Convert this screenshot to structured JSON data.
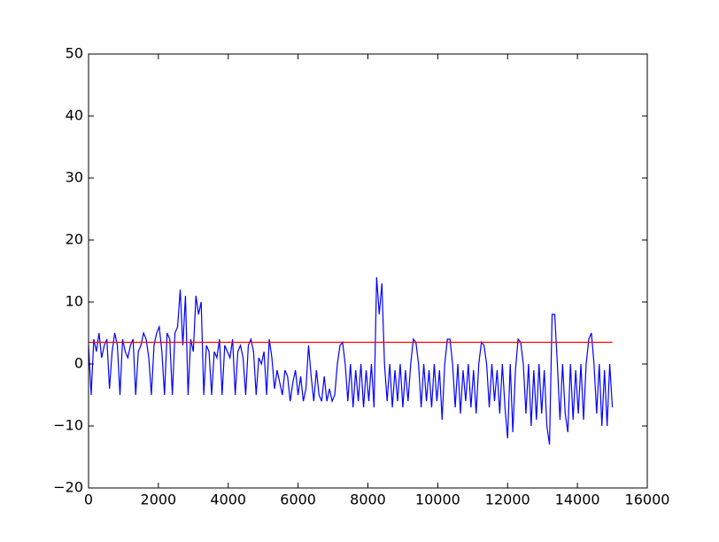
{
  "chart_data": {
    "type": "line",
    "xlim": [
      0,
      16000
    ],
    "xticks": [
      0,
      2000,
      4000,
      6000,
      8000,
      10000,
      12000,
      14000,
      16000
    ],
    "ylim": [
      -20,
      50
    ],
    "yticks": [
      {
        "value": -20,
        "label": "−20"
      },
      {
        "value": -10,
        "label": "−10"
      },
      0,
      10,
      20,
      30,
      40,
      50
    ],
    "series": [
      {
        "color": "#0000ff",
        "x": [
          0,
          75,
          150,
          225,
          300,
          375,
          450,
          525,
          600,
          675,
          750,
          825,
          900,
          975,
          1050,
          1125,
          1200,
          1275,
          1350,
          1425,
          1500,
          1575,
          1650,
          1725,
          1800,
          1875,
          1950,
          2025,
          2100,
          2175,
          2250,
          2325,
          2400,
          2475,
          2550,
          2625,
          2700,
          2775,
          2850,
          2925,
          3000,
          3075,
          3150,
          3225,
          3300,
          3375,
          3450,
          3525,
          3600,
          3675,
          3750,
          3825,
          3900,
          3975,
          4050,
          4125,
          4200,
          4275,
          4350,
          4425,
          4500,
          4575,
          4650,
          4725,
          4800,
          4875,
          4950,
          5025,
          5100,
          5175,
          5250,
          5325,
          5400,
          5475,
          5550,
          5625,
          5700,
          5775,
          5850,
          5925,
          6000,
          6075,
          6150,
          6225,
          6300,
          6375,
          6450,
          6525,
          6600,
          6675,
          6750,
          6825,
          6900,
          6975,
          7050,
          7125,
          7200,
          7275,
          7350,
          7425,
          7500,
          7575,
          7650,
          7725,
          7800,
          7875,
          7950,
          8025,
          8100,
          8175,
          8250,
          8325,
          8400,
          8475,
          8550,
          8625,
          8700,
          8775,
          8850,
          8925,
          9000,
          9075,
          9150,
          9225,
          9300,
          9375,
          9450,
          9525,
          9600,
          9675,
          9750,
          9825,
          9900,
          9975,
          10050,
          10125,
          10200,
          10275,
          10350,
          10425,
          10500,
          10575,
          10650,
          10725,
          10800,
          10875,
          10950,
          11025,
          11100,
          11175,
          11250,
          11325,
          11400,
          11475,
          11550,
          11625,
          11700,
          11775,
          11850,
          11925,
          12000,
          12075,
          12150,
          12225,
          12300,
          12375,
          12450,
          12525,
          12600,
          12675,
          12750,
          12825,
          12900,
          12975,
          13050,
          13125,
          13200,
          13275,
          13350,
          13425,
          13500,
          13575,
          13650,
          13725,
          13800,
          13875,
          13950,
          14025,
          14100,
          14175,
          14250,
          14325,
          14400,
          14475,
          14550,
          14625,
          14700,
          14775,
          14850,
          14925,
          15000
        ],
        "values": [
          3,
          -5,
          4,
          2,
          5,
          1,
          3,
          4,
          -4,
          2,
          5,
          3,
          -5,
          4,
          2,
          1,
          3,
          4,
          -5,
          2,
          3,
          5,
          4,
          1,
          -5,
          3,
          5,
          6,
          2,
          -5,
          5,
          4,
          -5,
          5,
          6,
          12,
          3,
          11,
          -5,
          4,
          2,
          11,
          8,
          10,
          -5,
          3,
          2,
          -5,
          2,
          1,
          4,
          -5,
          3,
          2,
          1,
          4,
          -5,
          2,
          3,
          1,
          -5,
          3,
          4,
          2,
          -5,
          1,
          0,
          2,
          -5,
          4,
          1,
          -4,
          -1,
          -3,
          -5,
          -1,
          -2,
          -6,
          -3,
          -1,
          -5,
          -2,
          -6,
          -4,
          3,
          -2,
          -6,
          -1,
          -5,
          -6,
          -2,
          -6,
          -4,
          -6,
          -5,
          0,
          3,
          3.5,
          0,
          -6,
          0,
          -7,
          -1,
          -6,
          0,
          -7,
          -1,
          -6,
          0,
          -7,
          14,
          8,
          13,
          0,
          -6,
          0,
          -7,
          -1,
          -6,
          0,
          -7,
          -1,
          -6,
          0,
          4,
          3.5,
          0,
          -7,
          0,
          -6,
          -1,
          -7,
          0,
          -6,
          -1,
          -9,
          0,
          4,
          4,
          0,
          -7,
          0,
          -8,
          -1,
          -6,
          0,
          -7,
          -1,
          -8,
          0,
          3.5,
          3,
          0,
          -7,
          0,
          -6,
          -1,
          -8,
          0,
          -7,
          -12,
          0,
          -11,
          -1,
          4,
          3.5,
          0,
          -8,
          0,
          -10,
          -1,
          -9,
          0,
          -8,
          -1,
          -10,
          -13,
          8,
          8,
          0,
          -9,
          0,
          -8,
          -11,
          0,
          -9,
          -1,
          -8,
          0,
          -9,
          0,
          4,
          5,
          0,
          -8,
          0,
          -10,
          -1,
          -10,
          0,
          -7
        ]
      },
      {
        "color": "#ff0000",
        "x": [
          0,
          15000
        ],
        "values": [
          3.5,
          3.5
        ]
      }
    ]
  }
}
